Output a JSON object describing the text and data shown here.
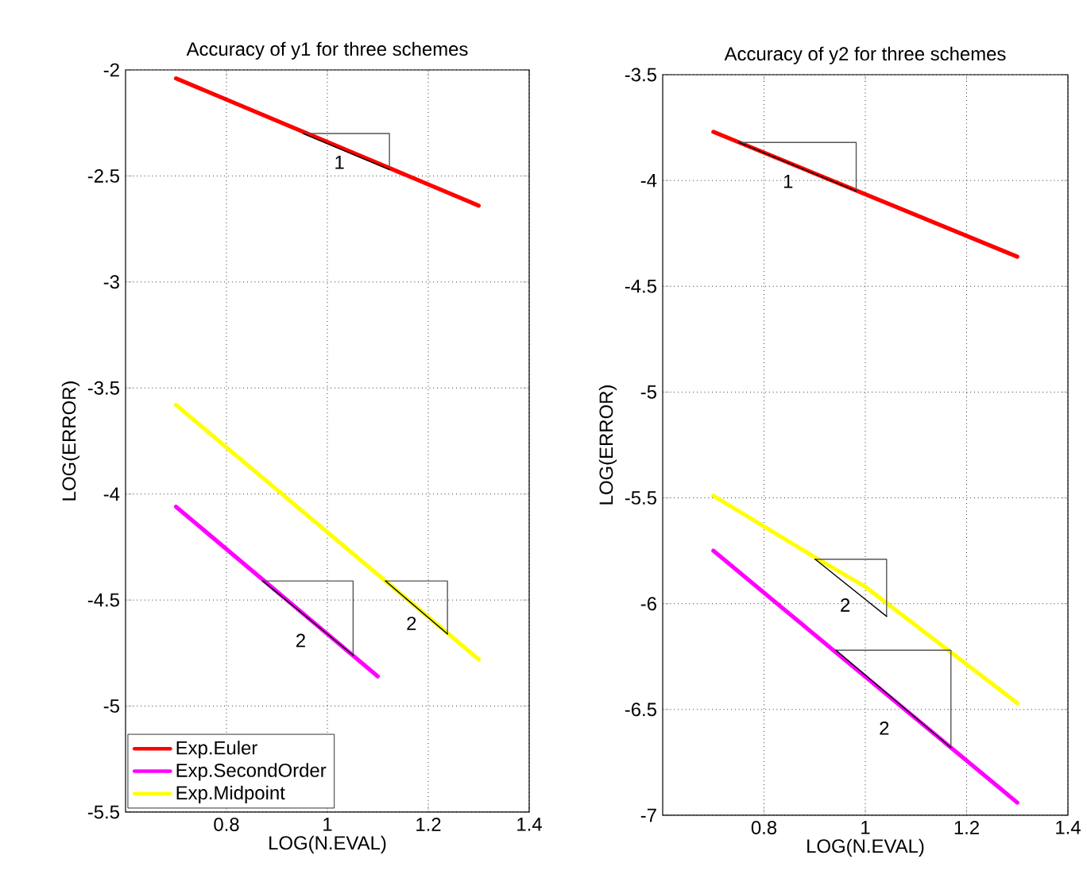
{
  "chart_data": [
    {
      "type": "line",
      "title": "Accuracy of y1 for three schemes",
      "xlabel": "LOG(N.EVAL)",
      "ylabel": "LOG(ERROR)",
      "xlim": [
        0.6,
        1.4
      ],
      "xticks": [
        0.8,
        1,
        1.2,
        1.4
      ],
      "ylim": [
        -5.5,
        -2
      ],
      "yticks": [
        -5.5,
        -5,
        -4.5,
        -4,
        -3.5,
        -3,
        -2.5,
        -2
      ],
      "grid": true,
      "legend": "bottom left",
      "line_style": "solid",
      "marker": "none",
      "series": [
        {
          "name": "Exp.Euler",
          "color": "#ff0000",
          "x": [
            0.7,
            1.3
          ],
          "values": [
            -2.04,
            -2.64
          ]
        },
        {
          "name": "Exp.SecondOrder",
          "color": "#ff00ff",
          "x": [
            0.7,
            1.1
          ],
          "values": [
            -4.06,
            -4.86
          ]
        },
        {
          "name": "Exp.Midpoint",
          "color": "#ffff00",
          "x": [
            0.7,
            1.3
          ],
          "values": [
            -3.58,
            -4.78
          ]
        },
        {
          "color": "#555555",
          "x": [
            0.952,
            1.123,
            1.123
          ],
          "values": [
            -2.3,
            -2.3,
            -2.47
          ]
        },
        {
          "color": "#000000",
          "x": [
            0.952,
            1.123
          ],
          "values": [
            -2.3,
            -2.47
          ]
        },
        {
          "color": "#555555",
          "x": [
            0.872,
            1.051,
            1.051
          ],
          "values": [
            -4.41,
            -4.41,
            -4.76
          ]
        },
        {
          "color": "#000000",
          "x": [
            0.872,
            1.051
          ],
          "values": [
            -4.41,
            -4.76
          ]
        },
        {
          "color": "#555555",
          "x": [
            1.115,
            1.238,
            1.238
          ],
          "values": [
            -4.41,
            -4.41,
            -4.66
          ]
        },
        {
          "color": "#000000",
          "x": [
            1.115,
            1.238
          ],
          "values": [
            -4.41,
            -4.66
          ]
        }
      ],
      "annotations": [
        "1",
        "2",
        "2"
      ]
    },
    {
      "type": "line",
      "title": "Accuracy of y2 for three schemes",
      "xlabel": "LOG(N.EVAL)",
      "ylabel": "LOG(ERROR)",
      "xlim": [
        0.6,
        1.4
      ],
      "xticks": [
        0.8,
        1,
        1.2,
        1.4
      ],
      "ylim": [
        -7,
        -3.5
      ],
      "yticks": [
        -7,
        -6.5,
        -6,
        -5.5,
        -5,
        -4.5,
        -4,
        -3.5
      ],
      "grid": true,
      "line_style": "solid",
      "marker": "none",
      "series": [
        {
          "color": "#ff0000",
          "x": [
            0.7,
            1.3
          ],
          "values": [
            -3.77,
            -4.36
          ]
        },
        {
          "color": "#ff00ff",
          "x": [
            0.7,
            1.3
          ],
          "values": [
            -5.75,
            -6.94
          ]
        },
        {
          "color": "#ffff00",
          "x": [
            0.7,
            0.9,
            1.0,
            1.3
          ],
          "values": [
            -5.49,
            -5.78,
            -5.92,
            -6.47
          ]
        },
        {
          "color": "#555555",
          "x": [
            0.75,
            0.982,
            0.982
          ],
          "values": [
            -3.82,
            -3.82,
            -4.05
          ]
        },
        {
          "color": "#000000",
          "x": [
            0.75,
            0.982
          ],
          "values": [
            -3.82,
            -4.05
          ]
        },
        {
          "color": "#555555",
          "x": [
            0.901,
            1.042,
            1.042
          ],
          "values": [
            -5.79,
            -5.79,
            -6.06
          ]
        },
        {
          "color": "#000000",
          "x": [
            0.901,
            1.042
          ],
          "values": [
            -5.79,
            -6.06
          ]
        },
        {
          "color": "#555555",
          "x": [
            0.942,
            1.169,
            1.169
          ],
          "values": [
            -6.22,
            -6.22,
            -6.68
          ]
        },
        {
          "color": "#000000",
          "x": [
            0.942,
            1.169
          ],
          "values": [
            -6.22,
            -6.68
          ]
        }
      ],
      "annotations": [
        "1",
        "2",
        "2"
      ]
    }
  ]
}
